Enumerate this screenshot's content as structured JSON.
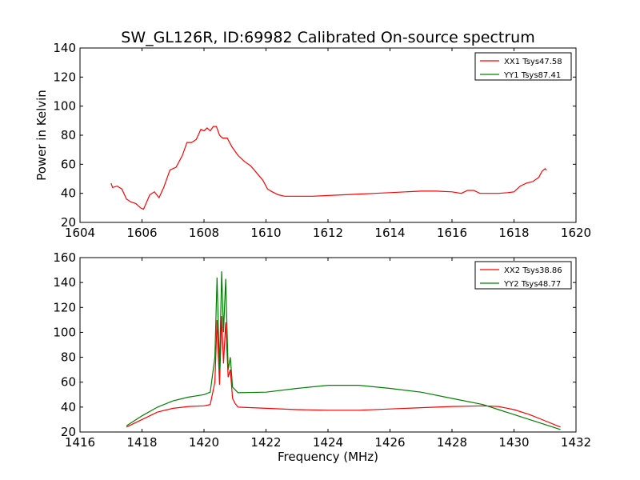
{
  "chart_data": [
    {
      "type": "line",
      "title": "SW_GL126R, ID:69982 Calibrated On-source spectrum",
      "xlabel": "",
      "ylabel": "Power in Kelvin",
      "xlim": [
        1604,
        1620
      ],
      "ylim": [
        20,
        140
      ],
      "xticks": [
        1604,
        1606,
        1608,
        1610,
        1612,
        1614,
        1616,
        1618,
        1620
      ],
      "yticks": [
        20,
        40,
        60,
        80,
        100,
        120,
        140
      ],
      "grid": false,
      "legend_position": "top-right",
      "series": [
        {
          "name": "XX1 Tsys47.58",
          "color": "#ff0000",
          "x": [
            1605.0,
            1605.05,
            1605.2,
            1605.35,
            1605.5,
            1605.65,
            1605.8,
            1605.95,
            1606.05,
            1606.25,
            1606.4,
            1606.55,
            1606.7,
            1606.9,
            1607.1,
            1607.3,
            1607.45,
            1607.6,
            1607.75,
            1607.9,
            1608.0,
            1608.1,
            1608.2,
            1608.3,
            1608.4,
            1608.5,
            1608.6,
            1608.75,
            1608.9,
            1609.1,
            1609.3,
            1609.5,
            1609.7,
            1609.9,
            1610.05,
            1610.2,
            1610.4,
            1610.6,
            1610.8,
            1611.0,
            1611.5,
            1612.0,
            1612.5,
            1613.0,
            1613.5,
            1614.0,
            1614.5,
            1615.0,
            1615.5,
            1616.0,
            1616.3,
            1616.5,
            1616.7,
            1616.9,
            1617.2,
            1617.5,
            1617.8,
            1618.0,
            1618.2,
            1618.4,
            1618.6,
            1618.8,
            1618.9,
            1619.0,
            1619.05
          ],
          "values": [
            47,
            44,
            45,
            43,
            36,
            34,
            33,
            30,
            29,
            39,
            41,
            37,
            44,
            56,
            58,
            66,
            75,
            75,
            77,
            84,
            83,
            85,
            83,
            86,
            86,
            80,
            78,
            78,
            72,
            66,
            62,
            59,
            54,
            49,
            43,
            41,
            39,
            38,
            38,
            38,
            38,
            38.5,
            39,
            39.5,
            40,
            40.5,
            41,
            41.5,
            41.5,
            41,
            40,
            42,
            42,
            40,
            40,
            40,
            40.5,
            41,
            45,
            47,
            48,
            51,
            55,
            57,
            56
          ]
        }
      ]
    },
    {
      "type": "line",
      "title": "",
      "xlabel": "Frequency (MHz)",
      "ylabel": "",
      "xlim": [
        1416,
        1432
      ],
      "ylim": [
        20,
        160
      ],
      "xticks": [
        1416,
        1418,
        1420,
        1422,
        1424,
        1426,
        1428,
        1430,
        1432
      ],
      "yticks": [
        20,
        40,
        60,
        80,
        100,
        120,
        140,
        160
      ],
      "grid": false,
      "legend_position": "top-right",
      "series": [
        {
          "name": "XX2 Tsys38.86",
          "color": "#ff0000",
          "x": [
            1417.5,
            1418.0,
            1418.5,
            1419.0,
            1419.5,
            1420.0,
            1420.2,
            1420.35,
            1420.42,
            1420.5,
            1420.57,
            1420.63,
            1420.7,
            1420.78,
            1420.85,
            1420.92,
            1421.0,
            1421.1,
            1422.0,
            1423.0,
            1424.0,
            1425.0,
            1426.0,
            1427.0,
            1428.0,
            1429.0,
            1429.5,
            1430.0,
            1430.5,
            1431.0,
            1431.5
          ],
          "values": [
            24,
            30,
            36,
            39,
            40.5,
            41,
            42,
            60,
            110,
            58,
            113,
            75,
            108,
            64,
            70,
            47,
            43,
            40,
            39,
            38,
            37.5,
            37.5,
            38.5,
            39.5,
            40.5,
            41,
            40.5,
            38,
            34,
            29,
            24
          ]
        },
        {
          "name": "YY2 Tsys48.77",
          "color": "#008000",
          "x": [
            1417.5,
            1418.0,
            1418.5,
            1419.0,
            1419.5,
            1420.0,
            1420.2,
            1420.35,
            1420.42,
            1420.5,
            1420.57,
            1420.63,
            1420.7,
            1420.78,
            1420.85,
            1420.92,
            1421.0,
            1421.1,
            1422.0,
            1423.0,
            1424.0,
            1425.0,
            1426.0,
            1427.0,
            1428.0,
            1429.0,
            1429.5,
            1430.0,
            1430.5,
            1431.0,
            1431.5
          ],
          "values": [
            25,
            33,
            40,
            45,
            48,
            50,
            52,
            80,
            144,
            70,
            149,
            100,
            143,
            70,
            80,
            56,
            54,
            51.5,
            52,
            55,
            57.5,
            57.5,
            55,
            52,
            47,
            42,
            38,
            34,
            30,
            26,
            22
          ]
        }
      ]
    }
  ],
  "legend_top": {
    "entries": [
      {
        "label": "XX1 Tsys47.58",
        "color": "#ff0000"
      },
      {
        "label": "YY1 Tsys87.41",
        "color": "#008000"
      }
    ]
  },
  "legend_bottom": {
    "entries": [
      {
        "label": "XX2 Tsys38.86",
        "color": "#ff0000"
      },
      {
        "label": "YY2 Tsys48.77",
        "color": "#008000"
      }
    ]
  }
}
